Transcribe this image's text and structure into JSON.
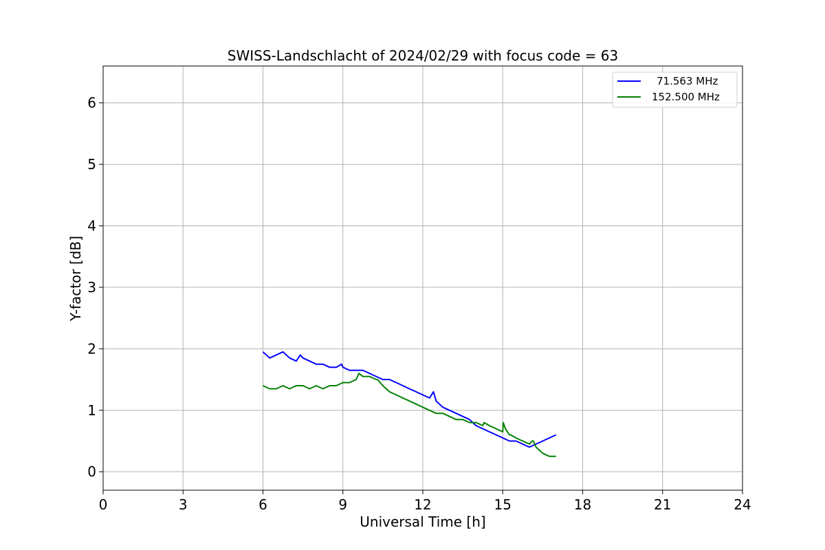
{
  "chart_data": {
    "type": "line",
    "title": "SWISS-Landschlacht of 2024/02/29 with focus code = 63",
    "xlabel": "Universal Time [h]",
    "ylabel": "Y-factor [dB]",
    "xlim": [
      0,
      24
    ],
    "ylim": [
      -0.3,
      6.6
    ],
    "xticks": [
      0,
      3,
      6,
      9,
      12,
      15,
      18,
      21,
      24
    ],
    "yticks": [
      0,
      1,
      2,
      3,
      4,
      5,
      6
    ],
    "grid": true,
    "legend_position": "top-right",
    "series": [
      {
        "name": "71.563 MHz",
        "color": "#0000ff",
        "x": [
          6.0,
          6.25,
          6.5,
          6.75,
          7.0,
          7.25,
          7.4,
          7.5,
          7.75,
          8.0,
          8.25,
          8.5,
          8.75,
          8.95,
          9.0,
          9.25,
          9.5,
          9.75,
          10.0,
          10.25,
          10.5,
          10.75,
          11.0,
          11.25,
          11.5,
          11.75,
          12.0,
          12.25,
          12.4,
          12.5,
          12.75,
          13.0,
          13.25,
          13.5,
          13.75,
          14.0,
          14.25,
          14.5,
          14.75,
          15.0,
          15.25,
          15.5,
          15.75,
          16.0,
          16.25,
          16.5,
          16.75,
          17.0
        ],
        "y": [
          1.95,
          1.85,
          1.9,
          1.95,
          1.85,
          1.8,
          1.9,
          1.85,
          1.8,
          1.75,
          1.75,
          1.7,
          1.7,
          1.75,
          1.7,
          1.65,
          1.65,
          1.65,
          1.6,
          1.55,
          1.5,
          1.5,
          1.45,
          1.4,
          1.35,
          1.3,
          1.25,
          1.2,
          1.3,
          1.15,
          1.05,
          1.0,
          0.95,
          0.9,
          0.85,
          0.75,
          0.7,
          0.65,
          0.6,
          0.55,
          0.5,
          0.5,
          0.45,
          0.4,
          0.45,
          0.5,
          0.55,
          0.6
        ]
      },
      {
        "name": "152.500 MHz",
        "color": "#008000",
        "x": [
          6.0,
          6.25,
          6.5,
          6.75,
          7.0,
          7.25,
          7.5,
          7.75,
          8.0,
          8.25,
          8.5,
          8.75,
          9.0,
          9.25,
          9.5,
          9.6,
          9.75,
          10.0,
          10.25,
          10.3,
          10.5,
          10.75,
          11.0,
          11.25,
          11.5,
          11.75,
          12.0,
          12.25,
          12.5,
          12.75,
          13.0,
          13.25,
          13.5,
          13.75,
          14.0,
          14.25,
          14.3,
          14.5,
          14.75,
          15.0,
          15.02,
          15.1,
          15.25,
          15.3,
          15.5,
          15.75,
          16.0,
          16.1,
          16.15,
          16.25,
          16.5,
          16.75,
          17.0
        ],
        "y": [
          1.4,
          1.35,
          1.35,
          1.4,
          1.35,
          1.4,
          1.4,
          1.35,
          1.4,
          1.35,
          1.4,
          1.4,
          1.45,
          1.45,
          1.5,
          1.6,
          1.55,
          1.55,
          1.5,
          1.5,
          1.4,
          1.3,
          1.25,
          1.2,
          1.15,
          1.1,
          1.05,
          1.0,
          0.95,
          0.95,
          0.9,
          0.85,
          0.85,
          0.8,
          0.8,
          0.75,
          0.8,
          0.75,
          0.7,
          0.65,
          0.8,
          0.7,
          0.6,
          0.6,
          0.55,
          0.5,
          0.45,
          0.5,
          0.5,
          0.4,
          0.3,
          0.25,
          0.25
        ]
      }
    ]
  }
}
